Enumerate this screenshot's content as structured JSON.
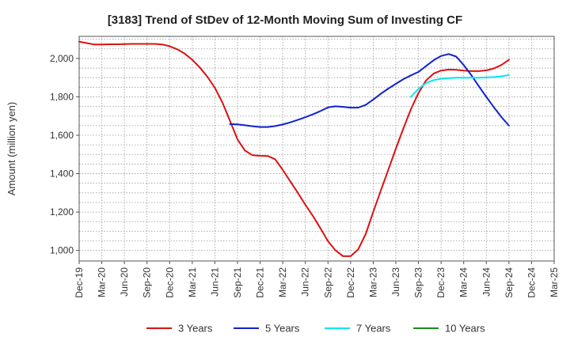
{
  "chart_data": {
    "type": "line",
    "title": "[3183]  Trend of StDev of 12-Month Moving Sum of Investing CF",
    "ylabel": "Amount (million yen)",
    "xlabel": "",
    "ylim": [
      945,
      2115
    ],
    "yticks": [
      1000,
      1200,
      1400,
      1600,
      1800,
      2000
    ],
    "ytick_labels": [
      "1,000",
      "1,200",
      "1,400",
      "1,600",
      "1,800",
      "2,000"
    ],
    "xticks": [
      "Dec-19",
      "Mar-20",
      "Jun-20",
      "Sep-20",
      "Dec-20",
      "Mar-21",
      "Jun-21",
      "Sep-21",
      "Dec-21",
      "Mar-22",
      "Jun-22",
      "Sep-22",
      "Dec-22",
      "Mar-23",
      "Jun-23",
      "Sep-23",
      "Dec-23",
      "Mar-24",
      "Jun-24",
      "Sep-24",
      "Dec-24",
      "Mar-25"
    ],
    "grid": true,
    "legend_position": "bottom",
    "series": [
      {
        "name": "3 Years",
        "color": "#dd1111",
        "points": [
          [
            "Dec-19",
            2088
          ],
          [
            "Jan-20",
            2080
          ],
          [
            "Feb-20",
            2073
          ],
          [
            "Mar-20",
            2073
          ],
          [
            "Apr-20",
            2074
          ],
          [
            "May-20",
            2074
          ],
          [
            "Jun-20",
            2075
          ],
          [
            "Jul-20",
            2076
          ],
          [
            "Aug-20",
            2076
          ],
          [
            "Sep-20",
            2076
          ],
          [
            "Oct-20",
            2076
          ],
          [
            "Nov-20",
            2073
          ],
          [
            "Dec-20",
            2064
          ],
          [
            "Jan-21",
            2048
          ],
          [
            "Feb-21",
            2025
          ],
          [
            "Mar-21",
            1993
          ],
          [
            "Apr-21",
            1953
          ],
          [
            "May-21",
            1905
          ],
          [
            "Jun-21",
            1847
          ],
          [
            "Jul-21",
            1770
          ],
          [
            "Aug-21",
            1675
          ],
          [
            "Sep-21",
            1578
          ],
          [
            "Oct-21",
            1520
          ],
          [
            "Nov-21",
            1496
          ],
          [
            "Dec-21",
            1493
          ],
          [
            "Jan-22",
            1492
          ],
          [
            "Feb-22",
            1475
          ],
          [
            "Mar-22",
            1420
          ],
          [
            "Apr-22",
            1360
          ],
          [
            "May-22",
            1300
          ],
          [
            "Jun-22",
            1238
          ],
          [
            "Jul-22",
            1180
          ],
          [
            "Aug-22",
            1115
          ],
          [
            "Sep-22",
            1048
          ],
          [
            "Oct-22",
            1000
          ],
          [
            "Nov-22",
            970
          ],
          [
            "Dec-22",
            970
          ],
          [
            "Jan-23",
            1005
          ],
          [
            "Feb-23",
            1085
          ],
          [
            "Mar-23",
            1200
          ],
          [
            "Apr-23",
            1312
          ],
          [
            "May-23",
            1420
          ],
          [
            "Jun-23",
            1530
          ],
          [
            "Jul-23",
            1635
          ],
          [
            "Aug-23",
            1735
          ],
          [
            "Sep-23",
            1820
          ],
          [
            "Oct-23",
            1885
          ],
          [
            "Nov-23",
            1921
          ],
          [
            "Dec-23",
            1937
          ],
          [
            "Jan-24",
            1942
          ],
          [
            "Feb-24",
            1941
          ],
          [
            "Mar-24",
            1937
          ],
          [
            "Apr-24",
            1934
          ],
          [
            "May-24",
            1934
          ],
          [
            "Jun-24",
            1938
          ],
          [
            "Jul-24",
            1948
          ],
          [
            "Aug-24",
            1966
          ],
          [
            "Sep-24",
            1993
          ]
        ]
      },
      {
        "name": "5 Years",
        "color": "#1122cc",
        "points": [
          [
            "Aug-21",
            1658
          ],
          [
            "Sep-21",
            1657
          ],
          [
            "Oct-21",
            1652
          ],
          [
            "Nov-21",
            1647
          ],
          [
            "Dec-21",
            1643
          ],
          [
            "Jan-22",
            1643
          ],
          [
            "Feb-22",
            1648
          ],
          [
            "Mar-22",
            1656
          ],
          [
            "Apr-22",
            1667
          ],
          [
            "May-22",
            1680
          ],
          [
            "Jun-22",
            1694
          ],
          [
            "Jul-22",
            1709
          ],
          [
            "Aug-22",
            1726
          ],
          [
            "Sep-22",
            1745
          ],
          [
            "Oct-22",
            1751
          ],
          [
            "Nov-22",
            1748
          ],
          [
            "Dec-22",
            1744
          ],
          [
            "Jan-23",
            1744
          ],
          [
            "Feb-23",
            1758
          ],
          [
            "Mar-23",
            1786
          ],
          [
            "Apr-23",
            1816
          ],
          [
            "May-23",
            1843
          ],
          [
            "Jun-23",
            1868
          ],
          [
            "Jul-23",
            1892
          ],
          [
            "Aug-23",
            1912
          ],
          [
            "Sep-23",
            1930
          ],
          [
            "Oct-23",
            1960
          ],
          [
            "Nov-23",
            1990
          ],
          [
            "Dec-23",
            2013
          ],
          [
            "Jan-24",
            2023
          ],
          [
            "Feb-24",
            2010
          ],
          [
            "Mar-24",
            1966
          ],
          [
            "Apr-24",
            1914
          ],
          [
            "May-24",
            1856
          ],
          [
            "Jun-24",
            1800
          ],
          [
            "Jul-24",
            1746
          ],
          [
            "Aug-24",
            1695
          ],
          [
            "Sep-24",
            1650
          ]
        ]
      },
      {
        "name": "7 Years",
        "color": "#00e8f0",
        "points": [
          [
            "Aug-23",
            1800
          ],
          [
            "Sep-23",
            1842
          ],
          [
            "Oct-23",
            1872
          ],
          [
            "Nov-23",
            1887
          ],
          [
            "Dec-23",
            1894
          ],
          [
            "Jan-24",
            1898
          ],
          [
            "Feb-24",
            1900
          ],
          [
            "Mar-24",
            1900
          ],
          [
            "Apr-24",
            1900
          ],
          [
            "May-24",
            1900
          ],
          [
            "Jun-24",
            1901
          ],
          [
            "Jul-24",
            1903
          ],
          [
            "Aug-24",
            1907
          ],
          [
            "Sep-24",
            1914
          ]
        ]
      },
      {
        "name": "10 Years",
        "color": "#1a8a1a",
        "points": []
      }
    ]
  }
}
